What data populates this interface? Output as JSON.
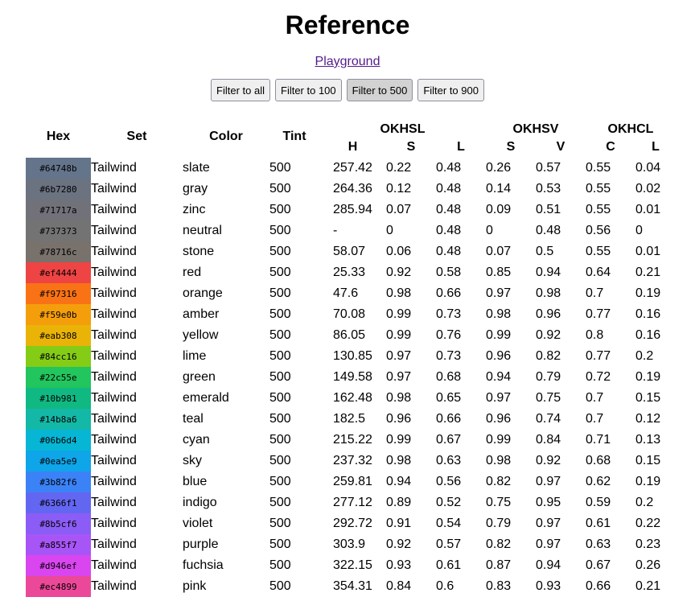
{
  "title": "Reference",
  "nav": {
    "playground_link": "Playground"
  },
  "filters": [
    {
      "label": "Filter to all",
      "active": false
    },
    {
      "label": "Filter to 100",
      "active": false
    },
    {
      "label": "Filter to 500",
      "active": true
    },
    {
      "label": "Filter to 900",
      "active": false
    }
  ],
  "table": {
    "headers": {
      "hex": "Hex",
      "set": "Set",
      "color": "Color",
      "tint": "Tint",
      "okhsl": "OKHSL",
      "okhsv": "OKHSV",
      "okhcl": "OKHCL",
      "okhsl_h": "H",
      "okhsl_s": "S",
      "okhsl_l": "L",
      "okhsv_s": "S",
      "okhsv_v": "V",
      "okhcl_c": "C",
      "okhcl_l": "L"
    },
    "rows": [
      {
        "hex": "#64748b",
        "set": "Tailwind",
        "color": "slate",
        "tint": "500",
        "h": "257.42",
        "s1": "0.22",
        "l1": "0.48",
        "s2": "0.26",
        "v": "0.57",
        "c": "0.55",
        "l2": "0.04"
      },
      {
        "hex": "#6b7280",
        "set": "Tailwind",
        "color": "gray",
        "tint": "500",
        "h": "264.36",
        "s1": "0.12",
        "l1": "0.48",
        "s2": "0.14",
        "v": "0.53",
        "c": "0.55",
        "l2": "0.02"
      },
      {
        "hex": "#71717a",
        "set": "Tailwind",
        "color": "zinc",
        "tint": "500",
        "h": "285.94",
        "s1": "0.07",
        "l1": "0.48",
        "s2": "0.09",
        "v": "0.51",
        "c": "0.55",
        "l2": "0.01"
      },
      {
        "hex": "#737373",
        "set": "Tailwind",
        "color": "neutral",
        "tint": "500",
        "h": "-",
        "s1": "0",
        "l1": "0.48",
        "s2": "0",
        "v": "0.48",
        "c": "0.56",
        "l2": "0"
      },
      {
        "hex": "#78716c",
        "set": "Tailwind",
        "color": "stone",
        "tint": "500",
        "h": "58.07",
        "s1": "0.06",
        "l1": "0.48",
        "s2": "0.07",
        "v": "0.5",
        "c": "0.55",
        "l2": "0.01"
      },
      {
        "hex": "#ef4444",
        "set": "Tailwind",
        "color": "red",
        "tint": "500",
        "h": "25.33",
        "s1": "0.92",
        "l1": "0.58",
        "s2": "0.85",
        "v": "0.94",
        "c": "0.64",
        "l2": "0.21"
      },
      {
        "hex": "#f97316",
        "set": "Tailwind",
        "color": "orange",
        "tint": "500",
        "h": "47.6",
        "s1": "0.98",
        "l1": "0.66",
        "s2": "0.97",
        "v": "0.98",
        "c": "0.7",
        "l2": "0.19"
      },
      {
        "hex": "#f59e0b",
        "set": "Tailwind",
        "color": "amber",
        "tint": "500",
        "h": "70.08",
        "s1": "0.99",
        "l1": "0.73",
        "s2": "0.98",
        "v": "0.96",
        "c": "0.77",
        "l2": "0.16"
      },
      {
        "hex": "#eab308",
        "set": "Tailwind",
        "color": "yellow",
        "tint": "500",
        "h": "86.05",
        "s1": "0.99",
        "l1": "0.76",
        "s2": "0.99",
        "v": "0.92",
        "c": "0.8",
        "l2": "0.16"
      },
      {
        "hex": "#84cc16",
        "set": "Tailwind",
        "color": "lime",
        "tint": "500",
        "h": "130.85",
        "s1": "0.97",
        "l1": "0.73",
        "s2": "0.96",
        "v": "0.82",
        "c": "0.77",
        "l2": "0.2"
      },
      {
        "hex": "#22c55e",
        "set": "Tailwind",
        "color": "green",
        "tint": "500",
        "h": "149.58",
        "s1": "0.97",
        "l1": "0.68",
        "s2": "0.94",
        "v": "0.79",
        "c": "0.72",
        "l2": "0.19"
      },
      {
        "hex": "#10b981",
        "set": "Tailwind",
        "color": "emerald",
        "tint": "500",
        "h": "162.48",
        "s1": "0.98",
        "l1": "0.65",
        "s2": "0.97",
        "v": "0.75",
        "c": "0.7",
        "l2": "0.15"
      },
      {
        "hex": "#14b8a6",
        "set": "Tailwind",
        "color": "teal",
        "tint": "500",
        "h": "182.5",
        "s1": "0.96",
        "l1": "0.66",
        "s2": "0.96",
        "v": "0.74",
        "c": "0.7",
        "l2": "0.12"
      },
      {
        "hex": "#06b6d4",
        "set": "Tailwind",
        "color": "cyan",
        "tint": "500",
        "h": "215.22",
        "s1": "0.99",
        "l1": "0.67",
        "s2": "0.99",
        "v": "0.84",
        "c": "0.71",
        "l2": "0.13"
      },
      {
        "hex": "#0ea5e9",
        "set": "Tailwind",
        "color": "sky",
        "tint": "500",
        "h": "237.32",
        "s1": "0.98",
        "l1": "0.63",
        "s2": "0.98",
        "v": "0.92",
        "c": "0.68",
        "l2": "0.15"
      },
      {
        "hex": "#3b82f6",
        "set": "Tailwind",
        "color": "blue",
        "tint": "500",
        "h": "259.81",
        "s1": "0.94",
        "l1": "0.56",
        "s2": "0.82",
        "v": "0.97",
        "c": "0.62",
        "l2": "0.19"
      },
      {
        "hex": "#6366f1",
        "set": "Tailwind",
        "color": "indigo",
        "tint": "500",
        "h": "277.12",
        "s1": "0.89",
        "l1": "0.52",
        "s2": "0.75",
        "v": "0.95",
        "c": "0.59",
        "l2": "0.2"
      },
      {
        "hex": "#8b5cf6",
        "set": "Tailwind",
        "color": "violet",
        "tint": "500",
        "h": "292.72",
        "s1": "0.91",
        "l1": "0.54",
        "s2": "0.79",
        "v": "0.97",
        "c": "0.61",
        "l2": "0.22"
      },
      {
        "hex": "#a855f7",
        "set": "Tailwind",
        "color": "purple",
        "tint": "500",
        "h": "303.9",
        "s1": "0.92",
        "l1": "0.57",
        "s2": "0.82",
        "v": "0.97",
        "c": "0.63",
        "l2": "0.23"
      },
      {
        "hex": "#d946ef",
        "set": "Tailwind",
        "color": "fuchsia",
        "tint": "500",
        "h": "322.15",
        "s1": "0.93",
        "l1": "0.61",
        "s2": "0.87",
        "v": "0.94",
        "c": "0.67",
        "l2": "0.26"
      },
      {
        "hex": "#ec4899",
        "set": "Tailwind",
        "color": "pink",
        "tint": "500",
        "h": "354.31",
        "s1": "0.84",
        "l1": "0.6",
        "s2": "0.83",
        "v": "0.93",
        "c": "0.66",
        "l2": "0.21"
      }
    ]
  }
}
